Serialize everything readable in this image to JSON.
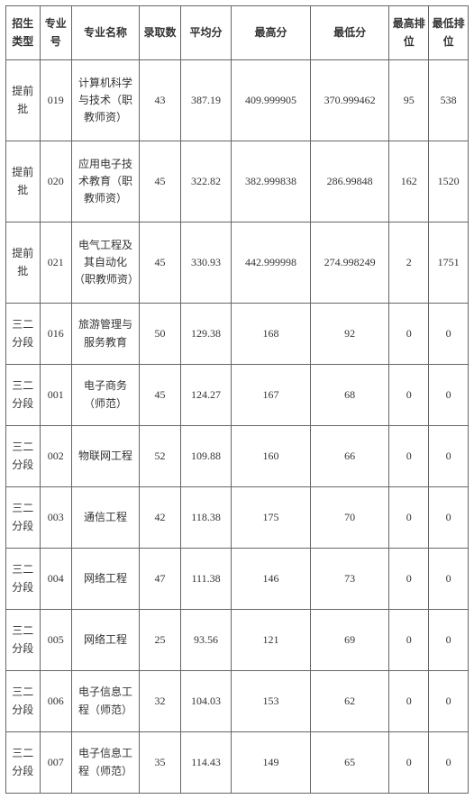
{
  "table": {
    "columns": [
      "招生类型",
      "专业号",
      "专业名称",
      "录取数",
      "平均分",
      "最高分",
      "最低分",
      "最高排位",
      "最低排位"
    ],
    "col_classes": [
      "col-type",
      "col-code",
      "col-name",
      "col-count",
      "col-avg",
      "col-max",
      "col-min",
      "col-rankhi",
      "col-ranklo"
    ],
    "rows": [
      {
        "tall": true,
        "cells": [
          "提前批",
          "019",
          "计算机科学与技术（职教师资）",
          "43",
          "387.19",
          "409.999905",
          "370.999462",
          "95",
          "538"
        ]
      },
      {
        "tall": true,
        "cells": [
          "提前批",
          "020",
          "应用电子技术教育（职教师资）",
          "45",
          "322.82",
          "382.999838",
          "286.99848",
          "162",
          "1520"
        ]
      },
      {
        "tall": true,
        "cells": [
          "提前批",
          "021",
          "电气工程及其自动化（职教师资）",
          "45",
          "330.93",
          "442.999998",
          "274.998249",
          "2",
          "1751"
        ]
      },
      {
        "tall": false,
        "cells": [
          "三二分段",
          "016",
          "旅游管理与服务教育",
          "50",
          "129.38",
          "168",
          "92",
          "0",
          "0"
        ]
      },
      {
        "tall": false,
        "cells": [
          "三二分段",
          "001",
          "电子商务（师范）",
          "45",
          "124.27",
          "167",
          "68",
          "0",
          "0"
        ]
      },
      {
        "tall": false,
        "cells": [
          "三二分段",
          "002",
          "物联网工程",
          "52",
          "109.88",
          "160",
          "66",
          "0",
          "0"
        ]
      },
      {
        "tall": false,
        "cells": [
          "三二分段",
          "003",
          "通信工程",
          "42",
          "118.38",
          "175",
          "70",
          "0",
          "0"
        ]
      },
      {
        "tall": false,
        "cells": [
          "三二分段",
          "004",
          "网络工程",
          "47",
          "111.38",
          "146",
          "73",
          "0",
          "0"
        ]
      },
      {
        "tall": false,
        "cells": [
          "三二分段",
          "005",
          "网络工程",
          "25",
          "93.56",
          "121",
          "69",
          "0",
          "0"
        ]
      },
      {
        "tall": false,
        "cells": [
          "三二分段",
          "006",
          "电子信息工程（师范）",
          "32",
          "104.03",
          "153",
          "62",
          "0",
          "0"
        ]
      },
      {
        "tall": false,
        "cells": [
          "三二分段",
          "007",
          "电子信息工程（师范）",
          "35",
          "114.43",
          "149",
          "65",
          "0",
          "0"
        ]
      }
    ],
    "border_color": "#666666",
    "text_color": "#333333",
    "background_color": "#ffffff",
    "font_family": "SimSun",
    "header_fontsize": 12,
    "cell_fontsize": 12
  }
}
